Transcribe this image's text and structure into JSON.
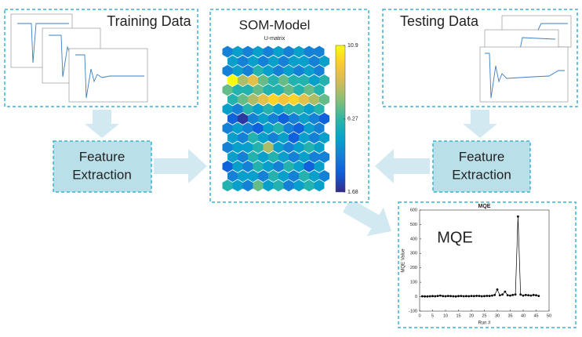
{
  "training": {
    "title": "Training Data"
  },
  "testing": {
    "title": "Testing Data"
  },
  "feature_left": {
    "lines": [
      "Feature",
      "Extraction"
    ]
  },
  "feature_right": {
    "lines": [
      "Feature",
      "Extraction"
    ]
  },
  "som": {
    "title": "SOM-Model",
    "subtitle": "U-matrix",
    "clim": [
      1.68,
      10.9
    ],
    "cticks": [
      1.68,
      6.27,
      10.9
    ],
    "umatrix": [
      [
        4,
        5,
        4,
        5,
        4,
        5,
        4,
        5,
        4,
        4
      ],
      [
        5,
        4,
        5,
        4,
        5,
        4,
        5,
        5,
        4,
        5
      ],
      [
        4,
        5,
        4,
        6,
        5,
        4,
        5,
        4,
        5,
        4
      ],
      [
        10.9,
        8,
        9,
        7,
        6,
        7,
        6,
        6,
        5,
        6
      ],
      [
        7,
        6,
        6,
        7,
        6,
        6,
        7,
        6,
        7,
        6
      ],
      [
        6,
        7,
        8,
        9,
        10,
        9.5,
        10,
        9,
        8,
        7
      ],
      [
        5,
        4,
        6,
        5,
        6,
        5,
        6,
        6,
        5,
        6
      ],
      [
        3,
        2,
        4,
        5,
        4,
        3,
        4,
        5,
        4,
        3
      ],
      [
        4,
        5,
        4,
        3,
        5,
        6,
        4,
        3,
        5,
        4
      ],
      [
        5,
        4,
        6,
        5,
        4,
        5,
        3,
        5,
        4,
        5
      ],
      [
        4,
        5,
        5,
        6,
        8,
        5,
        4,
        5,
        6,
        5
      ],
      [
        5,
        4,
        6,
        5,
        6,
        5,
        4,
        5,
        4,
        4
      ],
      [
        3,
        5,
        4,
        6,
        5,
        4,
        6,
        5,
        3,
        5
      ],
      [
        4,
        5,
        5,
        4,
        6,
        5,
        4,
        6,
        5,
        4
      ],
      [
        6,
        5,
        4,
        7,
        5,
        6,
        4,
        5,
        6,
        5
      ]
    ]
  },
  "mqe": {
    "type": "line",
    "label": "MQE",
    "title": "MQE",
    "xlabel": "Run #",
    "ylabel": "MQE Value",
    "color": "#000000",
    "x": [
      1,
      2,
      3,
      4,
      5,
      6,
      7,
      8,
      9,
      10,
      11,
      12,
      13,
      14,
      15,
      16,
      17,
      18,
      19,
      20,
      21,
      22,
      23,
      24,
      25,
      26,
      27,
      28,
      29,
      30,
      31,
      32,
      33,
      34,
      35,
      36,
      37,
      38,
      39,
      40,
      41,
      42,
      43,
      44,
      45,
      46
    ],
    "values": [
      3,
      2,
      2,
      3,
      4,
      3,
      5,
      8,
      4,
      3,
      5,
      4,
      3,
      2,
      4,
      5,
      3,
      4,
      3,
      5,
      4,
      6,
      5,
      3,
      4,
      6,
      5,
      8,
      12,
      50,
      10,
      15,
      35,
      10,
      8,
      12,
      15,
      555,
      15,
      8,
      12,
      10,
      8,
      12,
      10,
      5
    ],
    "xlim": [
      0,
      50
    ],
    "ylim": [
      -100,
      600
    ],
    "xticks": [
      0,
      5,
      10,
      15,
      20,
      25,
      30,
      35,
      40,
      45,
      50
    ],
    "yticks": [
      -100,
      0,
      100,
      200,
      300,
      400,
      500,
      600
    ]
  }
}
